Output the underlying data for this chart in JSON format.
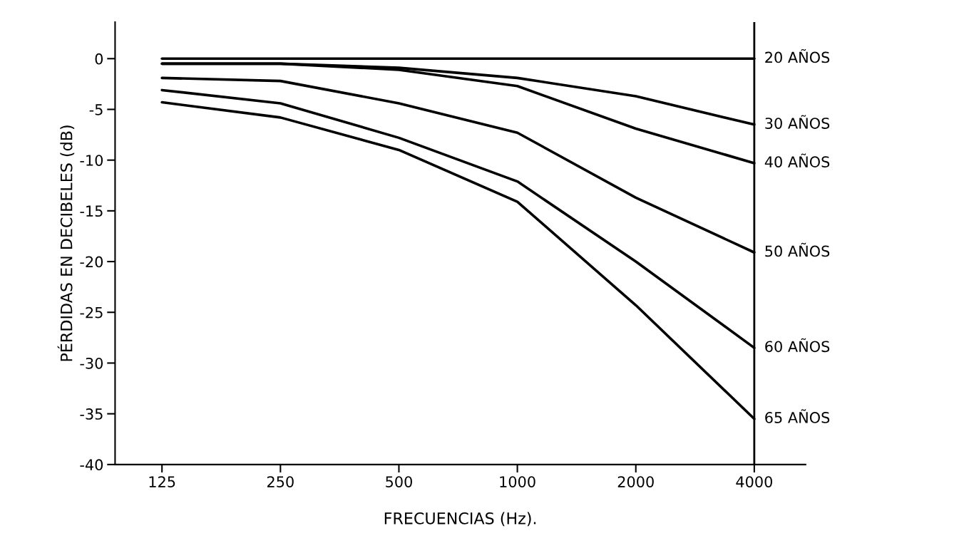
{
  "chart_data": {
    "type": "line",
    "xlabel": "FRECUENCIAS (Hz).",
    "ylabel": "PÉRDIDAS EN DECIBELES (dB)",
    "x": [
      125,
      250,
      500,
      1000,
      2000,
      4000
    ],
    "log": "x",
    "xlim": [
      95,
      5400
    ],
    "xticks": [
      125,
      250,
      500,
      1000,
      2000,
      4000
    ],
    "ylim": [
      -40,
      3.6
    ],
    "yticks": [
      0,
      -5,
      -10,
      -15,
      -20,
      -25,
      -30,
      -35,
      -40
    ],
    "grid": false,
    "legend": false,
    "marker": "none",
    "line_style": "solid",
    "ref_lines": [
      {
        "axis": "x",
        "value": 4000,
        "color": "#000000"
      }
    ],
    "series": [
      {
        "name": "20 AÑOS",
        "color": "#000000",
        "values": [
          0,
          0,
          0,
          0,
          0,
          0
        ]
      },
      {
        "name": "30 AÑOS",
        "color": "#000000",
        "values": [
          -0.5,
          -0.5,
          -0.9,
          -1.9,
          -3.7,
          -6.5
        ]
      },
      {
        "name": "40 AÑOS",
        "color": "#000000",
        "values": [
          -0.5,
          -0.5,
          -1.1,
          -2.7,
          -6.9,
          -10.3
        ]
      },
      {
        "name": "50 AÑOS",
        "color": "#000000",
        "values": [
          -1.9,
          -2.2,
          -4.4,
          -7.3,
          -13.7,
          -19.1
        ]
      },
      {
        "name": "60 AÑOS",
        "color": "#000000",
        "values": [
          -3.1,
          -4.4,
          -7.8,
          -12.1,
          -20,
          -28.5
        ]
      },
      {
        "name": "65 AÑOS",
        "color": "#000000",
        "values": [
          -4.3,
          -5.8,
          -9,
          -14.1,
          -24.3,
          -35.5
        ]
      }
    ]
  }
}
